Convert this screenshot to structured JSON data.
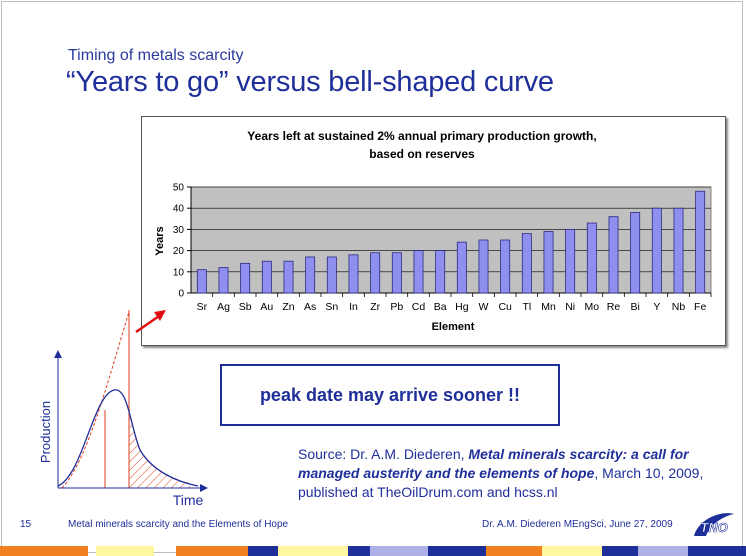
{
  "header": {
    "subtitle": "Timing of metals scarcity",
    "title": "“Years to go” versus bell-shaped curve"
  },
  "chart_data": {
    "type": "bar",
    "title_line1": "Years left at sustained 2% annual primary production growth,",
    "title_line2": "based on reserves",
    "xlabel": "Element",
    "ylabel": "Years",
    "ylim": [
      0,
      50
    ],
    "yticks": [
      "0",
      "10",
      "20",
      "30",
      "40",
      "50"
    ],
    "categories": [
      "Sr",
      "Ag",
      "Sb",
      "Au",
      "Zn",
      "As",
      "Sn",
      "In",
      "Zr",
      "Pb",
      "Cd",
      "Ba",
      "Hg",
      "W",
      "Cu",
      "Tl",
      "Mn",
      "Ni",
      "Mo",
      "Re",
      "Bi",
      "Y",
      "Nb",
      "Fe"
    ],
    "values": [
      11,
      12,
      14,
      15,
      15,
      17,
      17,
      18,
      19,
      19,
      20,
      20,
      24,
      25,
      25,
      28,
      29,
      30,
      33,
      36,
      38,
      40,
      40,
      48
    ],
    "colors": {
      "bar": "#8f8ff0",
      "bar_stroke": "#2a2a80",
      "plot_bg": "#c0c0c0",
      "grid": "#000000"
    }
  },
  "bell_curve": {
    "ylabel": "Production",
    "xlabel": "Time",
    "colors": {
      "curve": "#1f2f9a",
      "hatch": "#e04020",
      "arrow": "#e01010"
    }
  },
  "callout": {
    "text": "peak date may arrive sooner !!"
  },
  "source": {
    "prefix": "Source: Dr. A.M. Diederen, ",
    "italic_title": "Metal minerals scarcity: a call for managed austerity and the elements of hope",
    "suffix": ", March 10, 2009, published at TheOilDrum.com and hcss.nl"
  },
  "footer": {
    "page_number": "15",
    "left_text": "Metal minerals scarcity and the Elements of Hope",
    "right_text": "Dr. A.M. Diederen MEngSci, June 27, 2009",
    "logo_text": "TNO"
  },
  "colors": {
    "primary": "#1f2f9a",
    "bar_orange": "#f08020",
    "bar_yellow": "#fff8a0",
    "bar_navy": "#1f2f9a",
    "bar_lavender": "#b0b0e8"
  }
}
